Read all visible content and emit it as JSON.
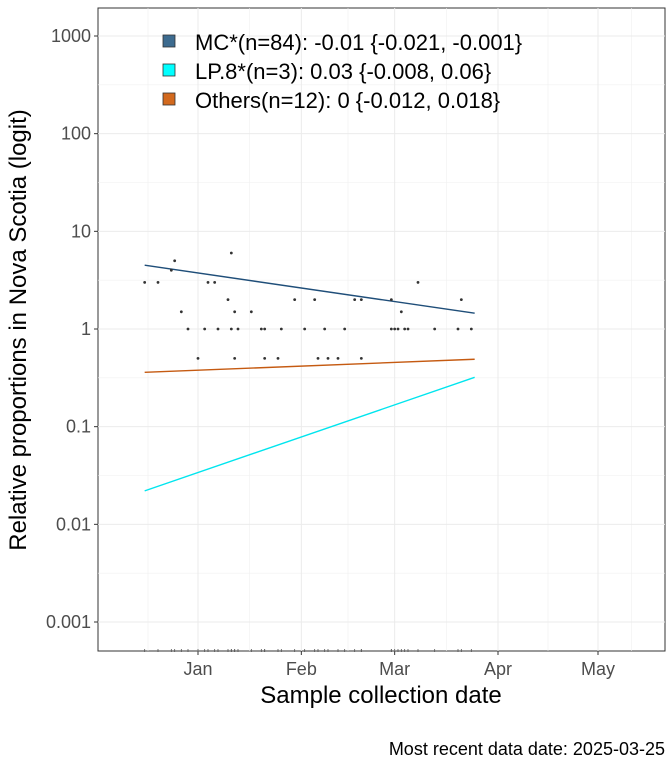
{
  "chart_data": {
    "type": "scatter",
    "title": "",
    "xlabel": "Sample collection date",
    "ylabel": "Relative proportions in Nova Scotia (logit)",
    "caption": "Most recent data date: 2025-03-25",
    "y_scale": "log10",
    "ylim": [
      0.0005,
      2000
    ],
    "xlim": [
      "2024-12-08",
      "2025-05-19"
    ],
    "grid": true,
    "legend_position": "top-left",
    "y_ticks": [
      {
        "value": 1000,
        "label": "1000"
      },
      {
        "value": 100,
        "label": "100"
      },
      {
        "value": 10,
        "label": "10"
      },
      {
        "value": 1,
        "label": "1"
      },
      {
        "value": 0.1,
        "label": "0.1"
      },
      {
        "value": 0.01,
        "label": "0.01"
      },
      {
        "value": 0.001,
        "label": "0.001"
      }
    ],
    "x_ticks": [
      {
        "date": "2025-01-01",
        "label": "Jan"
      },
      {
        "date": "2025-02-01",
        "label": "Feb"
      },
      {
        "date": "2025-03-01",
        "label": "Mar"
      },
      {
        "date": "2025-04-01",
        "label": "Apr"
      },
      {
        "date": "2025-05-01",
        "label": "May"
      }
    ],
    "series": [
      {
        "name": "MC*(n=84): -0.01 {-0.021, -0.001}",
        "color": "#1f4e79",
        "swatch": "#3d6b8f",
        "fit": {
          "start": [
            "2024-12-16",
            4.5
          ],
          "end": [
            "2025-03-25",
            1.45
          ]
        }
      },
      {
        "name": "LP.8*(n=3): 0.03 {-0.008, 0.06}",
        "color": "#00e5ee",
        "swatch": "#00ffff",
        "fit": {
          "start": [
            "2024-12-16",
            0.022
          ],
          "end": [
            "2025-03-25",
            0.32
          ]
        }
      },
      {
        "name": "Others(n=12): 0 {-0.012, 0.018}",
        "color": "#c55a11",
        "swatch": "#d2691e",
        "fit": {
          "start": [
            "2024-12-16",
            0.36
          ],
          "end": [
            "2025-03-25",
            0.49
          ]
        }
      }
    ],
    "points": [
      [
        "2024-12-16",
        3
      ],
      [
        "2024-12-20",
        3
      ],
      [
        "2024-12-24",
        4
      ],
      [
        "2024-12-25",
        5
      ],
      [
        "2024-12-27",
        1.5
      ],
      [
        "2024-12-29",
        1
      ],
      [
        "2025-01-01",
        0.5
      ],
      [
        "2025-01-03",
        1
      ],
      [
        "2025-01-04",
        3
      ],
      [
        "2025-01-06",
        3
      ],
      [
        "2025-01-07",
        1
      ],
      [
        "2025-01-10",
        2
      ],
      [
        "2025-01-11",
        1
      ],
      [
        "2025-01-11",
        6
      ],
      [
        "2025-01-12",
        1.5
      ],
      [
        "2025-01-12",
        0.5
      ],
      [
        "2025-01-13",
        1
      ],
      [
        "2025-01-17",
        1.5
      ],
      [
        "2025-01-20",
        1
      ],
      [
        "2025-01-21",
        1
      ],
      [
        "2025-01-21",
        0.5
      ],
      [
        "2025-01-25",
        0.5
      ],
      [
        "2025-01-26",
        1
      ],
      [
        "2025-01-30",
        2
      ],
      [
        "2025-02-02",
        1
      ],
      [
        "2025-02-05",
        2
      ],
      [
        "2025-02-06",
        0.5
      ],
      [
        "2025-02-08",
        1
      ],
      [
        "2025-02-09",
        0.5
      ],
      [
        "2025-02-12",
        0.5
      ],
      [
        "2025-02-14",
        1
      ],
      [
        "2025-02-17",
        2
      ],
      [
        "2025-02-19",
        2
      ],
      [
        "2025-02-19",
        0.5
      ],
      [
        "2025-02-28",
        2
      ],
      [
        "2025-02-28",
        1
      ],
      [
        "2025-03-01",
        1
      ],
      [
        "2025-03-02",
        1
      ],
      [
        "2025-03-03",
        1.5
      ],
      [
        "2025-03-04",
        1
      ],
      [
        "2025-03-05",
        1
      ],
      [
        "2025-03-08",
        3
      ],
      [
        "2025-03-13",
        1
      ],
      [
        "2025-03-20",
        1
      ],
      [
        "2025-03-21",
        2
      ],
      [
        "2025-03-24",
        1
      ]
    ]
  }
}
